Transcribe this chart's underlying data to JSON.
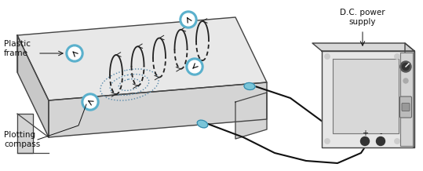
{
  "bg_color": "#ffffff",
  "label_plastic_frame": "Plastic\nframe",
  "label_plotting_compass": "Plotting\ncompass",
  "label_dc_supply": "D.C. power\nsupply",
  "label_plus": "+",
  "label_minus": "-",
  "blue_color": "#7ac5d8",
  "wire_color": "#111111",
  "frame_top": "#e8e8e8",
  "frame_front": "#d4d4d4",
  "frame_side": "#c8c8c8",
  "frame_edge": "#444444",
  "compass_blue": "#5ab0cc",
  "coil_color": "#222222",
  "dotted_color": "#5588aa",
  "text_color": "#111111",
  "font_size": 7.5,
  "box_face": "#e4e4e4",
  "box_edge": "#444444"
}
